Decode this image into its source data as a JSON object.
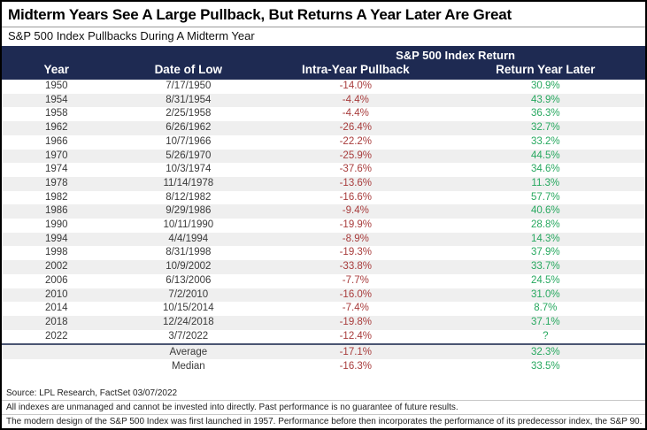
{
  "header": {
    "title": "Midterm Years See A Large Pullback, But Returns A Year Later Are Great",
    "subtitle": "S&P 500 Index Pullbacks During A Midterm Year"
  },
  "chart_data": {
    "type": "table",
    "title": "Midterm Years See A Large Pullback, But Returns A Year Later Are Great",
    "subtitle": "S&P 500 Index Pullbacks During A Midterm Year",
    "group_header": "S&P 500 Index Return",
    "columns": [
      "Year",
      "Date of Low",
      "Intra-Year Pullback",
      "Return Year Later"
    ],
    "rows": [
      [
        "1950",
        "7/17/1950",
        "-14.0%",
        "30.9%"
      ],
      [
        "1954",
        "8/31/1954",
        "-4.4%",
        "43.9%"
      ],
      [
        "1958",
        "2/25/1958",
        "-4.4%",
        "36.3%"
      ],
      [
        "1962",
        "6/26/1962",
        "-26.4%",
        "32.7%"
      ],
      [
        "1966",
        "10/7/1966",
        "-22.2%",
        "33.2%"
      ],
      [
        "1970",
        "5/26/1970",
        "-25.9%",
        "44.5%"
      ],
      [
        "1974",
        "10/3/1974",
        "-37.6%",
        "34.6%"
      ],
      [
        "1978",
        "11/14/1978",
        "-13.6%",
        "11.3%"
      ],
      [
        "1982",
        "8/12/1982",
        "-16.6%",
        "57.7%"
      ],
      [
        "1986",
        "9/29/1986",
        "-9.4%",
        "40.6%"
      ],
      [
        "1990",
        "10/11/1990",
        "-19.9%",
        "28.8%"
      ],
      [
        "1994",
        "4/4/1994",
        "-8.9%",
        "14.3%"
      ],
      [
        "1998",
        "8/31/1998",
        "-19.3%",
        "37.9%"
      ],
      [
        "2002",
        "10/9/2002",
        "-33.8%",
        "33.7%"
      ],
      [
        "2006",
        "6/13/2006",
        "-7.7%",
        "24.5%"
      ],
      [
        "2010",
        "7/2/2010",
        "-16.0%",
        "31.0%"
      ],
      [
        "2014",
        "10/15/2014",
        "-7.4%",
        "8.7%"
      ],
      [
        "2018",
        "12/24/2018",
        "-19.8%",
        "37.1%"
      ],
      [
        "2022",
        "3/7/2022",
        "-12.4%",
        "?"
      ]
    ],
    "summary_rows": [
      [
        "",
        "Average",
        "-17.1%",
        "32.3%"
      ],
      [
        "",
        "Median",
        "-16.3%",
        "33.5%"
      ]
    ]
  },
  "footnotes": [
    "Source: LPL Research, FactSet 03/07/2022",
    "All indexes are unmanaged and cannot be invested into directly. Past performance is no guarantee of future results.",
    "The modern design of the S&P 500 Index was first launched in 1957. Performance before then incorporates the performance of its predecessor index, the S&P 90."
  ],
  "colors": {
    "navy": "#1e2a52",
    "negative": "#a83c3c",
    "positive": "#27a85f",
    "stripe": "#efefef"
  }
}
